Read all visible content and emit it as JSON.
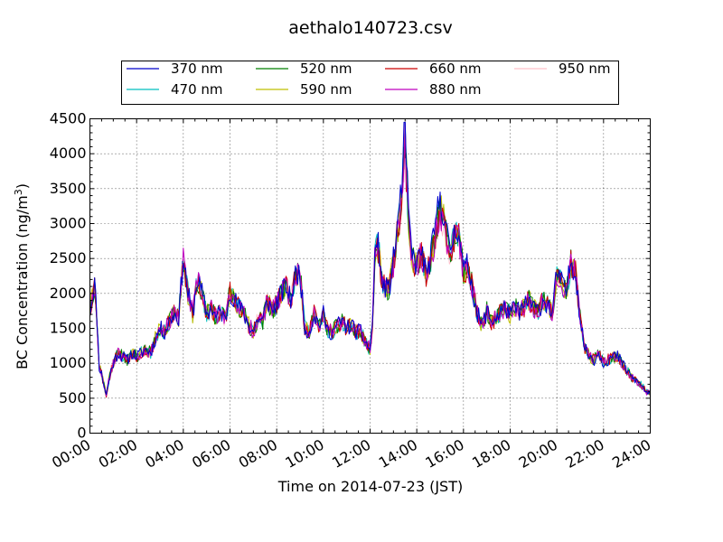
{
  "chart_data": {
    "type": "line",
    "title": "aethalo140723.csv",
    "xlabel": "Time on 2014-07-23 (JST)",
    "ylabel_main": "BC Concentration (ng/m",
    "ylabel_sup": "3",
    "ylabel_end": ")",
    "xlim": [
      0,
      24
    ],
    "ylim": [
      0,
      4500
    ],
    "x_ticks": [
      0,
      2,
      4,
      6,
      8,
      10,
      12,
      14,
      16,
      18,
      20,
      22,
      24
    ],
    "x_tick_labels": [
      "00:00",
      "02:00",
      "04:00",
      "06:00",
      "08:00",
      "10:00",
      "12:00",
      "14:00",
      "16:00",
      "18:00",
      "20:00",
      "22:00",
      "24:00"
    ],
    "y_ticks": [
      0,
      500,
      1000,
      1500,
      2000,
      2500,
      3000,
      3500,
      4000,
      4500
    ],
    "y_tick_labels": [
      "0",
      "500",
      "1000",
      "1500",
      "2000",
      "2500",
      "3000",
      "3500",
      "4000",
      "4500"
    ],
    "grid": true,
    "legend_position": "top",
    "x": [
      0.0,
      0.2,
      0.3,
      0.4,
      0.5,
      0.7,
      0.9,
      1.0,
      1.2,
      1.4,
      1.6,
      1.8,
      2.0,
      2.2,
      2.4,
      2.6,
      2.8,
      3.0,
      3.2,
      3.4,
      3.6,
      3.8,
      4.0,
      4.2,
      4.4,
      4.6,
      4.8,
      5.0,
      5.2,
      5.4,
      5.6,
      5.8,
      6.0,
      6.2,
      6.4,
      6.6,
      6.8,
      7.0,
      7.2,
      7.4,
      7.6,
      7.8,
      8.0,
      8.2,
      8.4,
      8.6,
      8.8,
      9.0,
      9.2,
      9.4,
      9.6,
      9.8,
      10.0,
      10.2,
      10.4,
      10.6,
      10.8,
      11.0,
      11.2,
      11.4,
      11.6,
      11.8,
      12.0,
      12.1,
      12.2,
      12.3,
      12.4,
      12.5,
      12.6,
      12.8,
      13.0,
      13.2,
      13.3,
      13.4,
      13.5,
      13.6,
      13.7,
      13.8,
      14.0,
      14.2,
      14.4,
      14.6,
      14.8,
      15.0,
      15.2,
      15.4,
      15.6,
      15.8,
      16.0,
      16.2,
      16.4,
      16.6,
      16.8,
      17.0,
      17.2,
      17.4,
      17.6,
      17.8,
      18.0,
      18.2,
      18.4,
      18.6,
      18.8,
      19.0,
      19.2,
      19.4,
      19.6,
      19.8,
      20.0,
      20.2,
      20.4,
      20.6,
      20.8,
      21.0,
      21.2,
      21.4,
      21.6,
      21.8,
      22.0,
      22.2,
      22.4,
      22.6,
      22.8,
      23.0,
      23.2,
      23.4,
      23.6,
      23.8,
      24.0
    ],
    "base": [
      1750,
      2150,
      1650,
      950,
      850,
      550,
      900,
      1000,
      1150,
      1100,
      1050,
      1150,
      1100,
      1150,
      1200,
      1150,
      1350,
      1500,
      1450,
      1600,
      1700,
      1650,
      2500,
      2000,
      1700,
      2200,
      2000,
      1700,
      1800,
      1650,
      1750,
      1600,
      2050,
      1900,
      1800,
      1700,
      1550,
      1450,
      1650,
      1600,
      1900,
      1750,
      1850,
      2000,
      2100,
      1900,
      2250,
      2300,
      1500,
      1450,
      1700,
      1550,
      1700,
      1450,
      1450,
      1550,
      1600,
      1500,
      1550,
      1450,
      1450,
      1300,
      1200,
      1550,
      2500,
      2700,
      2550,
      2150,
      2100,
      2050,
      2450,
      3000,
      3250,
      3700,
      4300,
      3400,
      2800,
      2500,
      2400,
      2600,
      2250,
      2500,
      2900,
      3300,
      3000,
      2550,
      2800,
      2900,
      2300,
      2400,
      2050,
      1700,
      1550,
      1750,
      1600,
      1650,
      1750,
      1800,
      1700,
      1800,
      1750,
      1800,
      1900,
      1800,
      1750,
      1900,
      1850,
      1700,
      2300,
      2150,
      2000,
      2450,
      2300,
      1650,
      1200,
      1100,
      1050,
      1150,
      1000,
      1050,
      1100,
      1100,
      1000,
      900,
      800,
      750,
      700,
      600,
      550
    ],
    "series": [
      {
        "name": "370 nm",
        "color": "#0000cc",
        "peak_boost": 1.1,
        "seed": 11
      },
      {
        "name": "470 nm",
        "color": "#00bfbf",
        "peak_boost": 1.0,
        "seed": 23
      },
      {
        "name": "520 nm",
        "color": "#007f00",
        "peak_boost": 0.95,
        "seed": 37
      },
      {
        "name": "590 nm",
        "color": "#bfbf00",
        "peak_boost": 0.95,
        "seed": 41
      },
      {
        "name": "660 nm",
        "color": "#cc0000",
        "peak_boost": 0.93,
        "seed": 53
      },
      {
        "name": "880 nm",
        "color": "#bf00bf",
        "peak_boost": 0.92,
        "seed": 67
      },
      {
        "name": "950 nm",
        "color": "#ffc0cb",
        "peak_boost": 0.9,
        "seed": 79
      }
    ]
  }
}
